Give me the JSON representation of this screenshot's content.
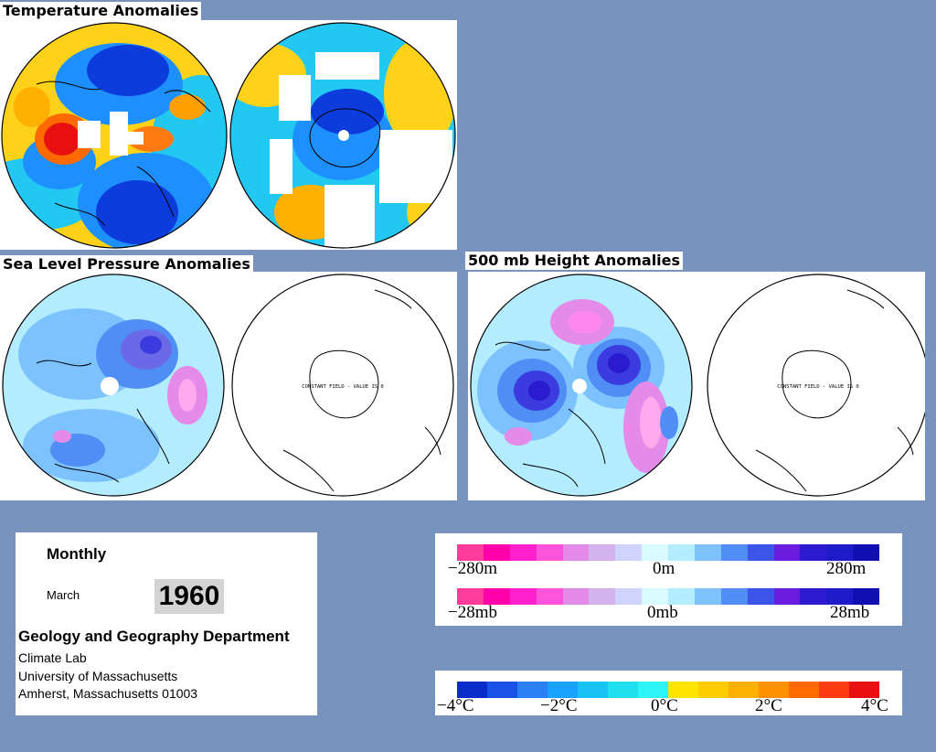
{
  "titles": {
    "temperature": "Temperature Anomalies",
    "slp": "Sea Level Pressure Anomalies",
    "height500": "500 mb Height Anomalies"
  },
  "map_notes": {
    "constant_field": "CONSTANT FIELD - VALUE IS 0"
  },
  "info": {
    "frequency": "Monthly",
    "month": "March",
    "year": "1960",
    "department": "Geology and Geography Department",
    "lab": "Climate Lab",
    "university": "University of Massachusetts",
    "address": "Amherst, Massachusetts 01003"
  },
  "height_scale": {
    "min_label": "−280m",
    "mid_label": "0m",
    "max_label": "280m",
    "colors": [
      "#ff3c9c",
      "#ff00aa",
      "#ff22cc",
      "#ff55dd",
      "#e48ae8",
      "#d4b2ee",
      "#d0d2ff",
      "#d9fbff",
      "#b3ecff",
      "#7cc2ff",
      "#4f8ff5",
      "#3b55e8",
      "#6a1be0",
      "#2e1bd1",
      "#1e1cc8",
      "#1010b0"
    ]
  },
  "pressure_scale": {
    "min_label": "−28mb",
    "mid_label": "0mb",
    "max_label": "28mb",
    "colors": [
      "#ff3c9c",
      "#ff00aa",
      "#ff22cc",
      "#ff55dd",
      "#e48ae8",
      "#d4b2ee",
      "#d0d2ff",
      "#d9fbff",
      "#b3ecff",
      "#7cc2ff",
      "#4f8ff5",
      "#3b55e8",
      "#6a1be0",
      "#2e1bd1",
      "#1e1cc8",
      "#1010b0"
    ]
  },
  "temperature_scale": {
    "labels": [
      "−4°C",
      "−2°C",
      "0°C",
      "2°C",
      "4°C"
    ],
    "colors": [
      "#0a2cc8",
      "#1a52e8",
      "#2b7ff5",
      "#1aa2ff",
      "#19c2f5",
      "#20e0f0",
      "#2df5f5",
      "#ffe400",
      "#ffcc00",
      "#ffb000",
      "#ff9000",
      "#ff6a00",
      "#ff3c10",
      "#e81010"
    ]
  }
}
